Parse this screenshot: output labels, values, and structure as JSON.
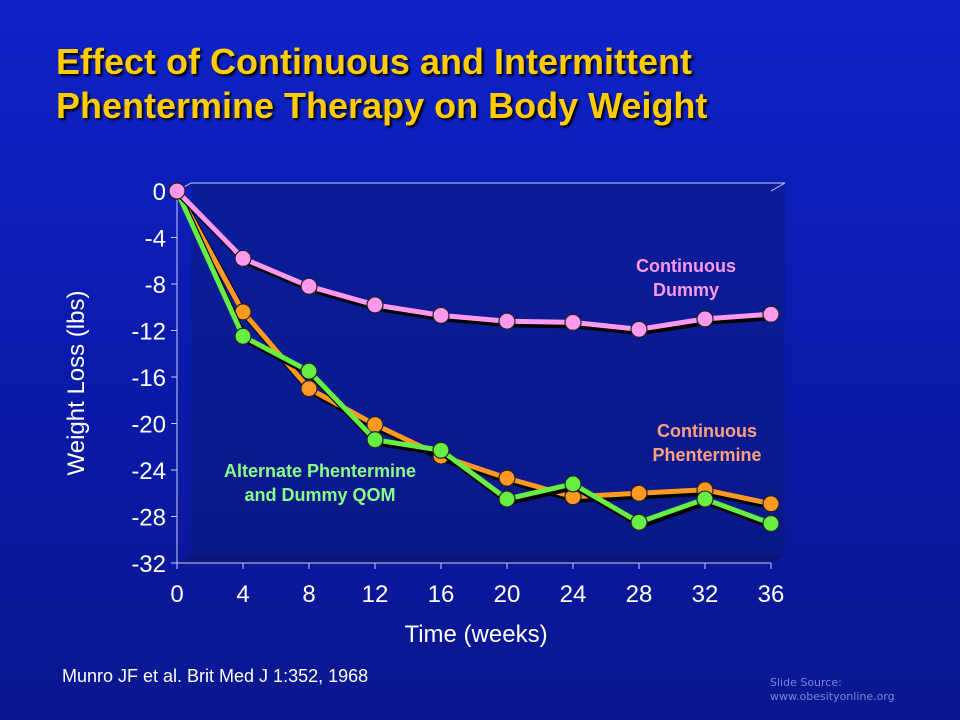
{
  "slide": {
    "title_line1": "Effect of Continuous and Intermittent",
    "title_line2": "Phentermine Therapy on Body Weight",
    "citation": "Munro JF et al. Brit Med J 1:352, 1968",
    "source_line1": "Slide Source:",
    "source_line2": "www.obesityonline.org"
  },
  "colors": {
    "title": "#ffcc00",
    "background": "#0e22c8",
    "plot_area": "#0a1e9c"
  },
  "chart_data": {
    "type": "line",
    "title": "Effect of Continuous and Intermittent Phentermine Therapy on Body Weight",
    "xlabel": "Time (weeks)",
    "ylabel": "Weight Loss (lbs)",
    "x": [
      0,
      4,
      8,
      12,
      16,
      20,
      24,
      28,
      32,
      36
    ],
    "xticks": [
      "0",
      "4",
      "8",
      "12",
      "16",
      "20",
      "24",
      "28",
      "32",
      "36"
    ],
    "yticks": [
      "0",
      "-4",
      "-8",
      "-12",
      "-16",
      "-20",
      "-24",
      "-28",
      "-32"
    ],
    "xlim": [
      0,
      36
    ],
    "ylim": [
      -32,
      0
    ],
    "grid": false,
    "series": [
      {
        "name": "Continuous Dummy",
        "label_lines": [
          "Continuous",
          "Dummy"
        ],
        "color": "#ff99ee",
        "values": [
          0,
          -5.8,
          -8.2,
          -9.8,
          -10.7,
          -11.2,
          -11.3,
          -11.9,
          -11.0,
          -10.6
        ]
      },
      {
        "name": "Continuous Phentermine",
        "label_lines": [
          "Continuous",
          "Phentermine"
        ],
        "color": "#ff9922",
        "label_color": "#ffa080",
        "values": [
          0,
          -10.4,
          -17.0,
          -20.1,
          -22.8,
          -24.7,
          -26.3,
          -26.0,
          -25.7,
          -26.9
        ]
      },
      {
        "name": "Alternate Phentermine and Dummy QOM",
        "label_lines": [
          "Alternate Phentermine",
          "and Dummy QOM"
        ],
        "color": "#66ee44",
        "label_color": "#88ff88",
        "values": [
          0,
          -12.5,
          -15.5,
          -21.4,
          -22.3,
          -26.5,
          -25.2,
          -28.5,
          -26.5,
          -28.6
        ]
      }
    ]
  }
}
